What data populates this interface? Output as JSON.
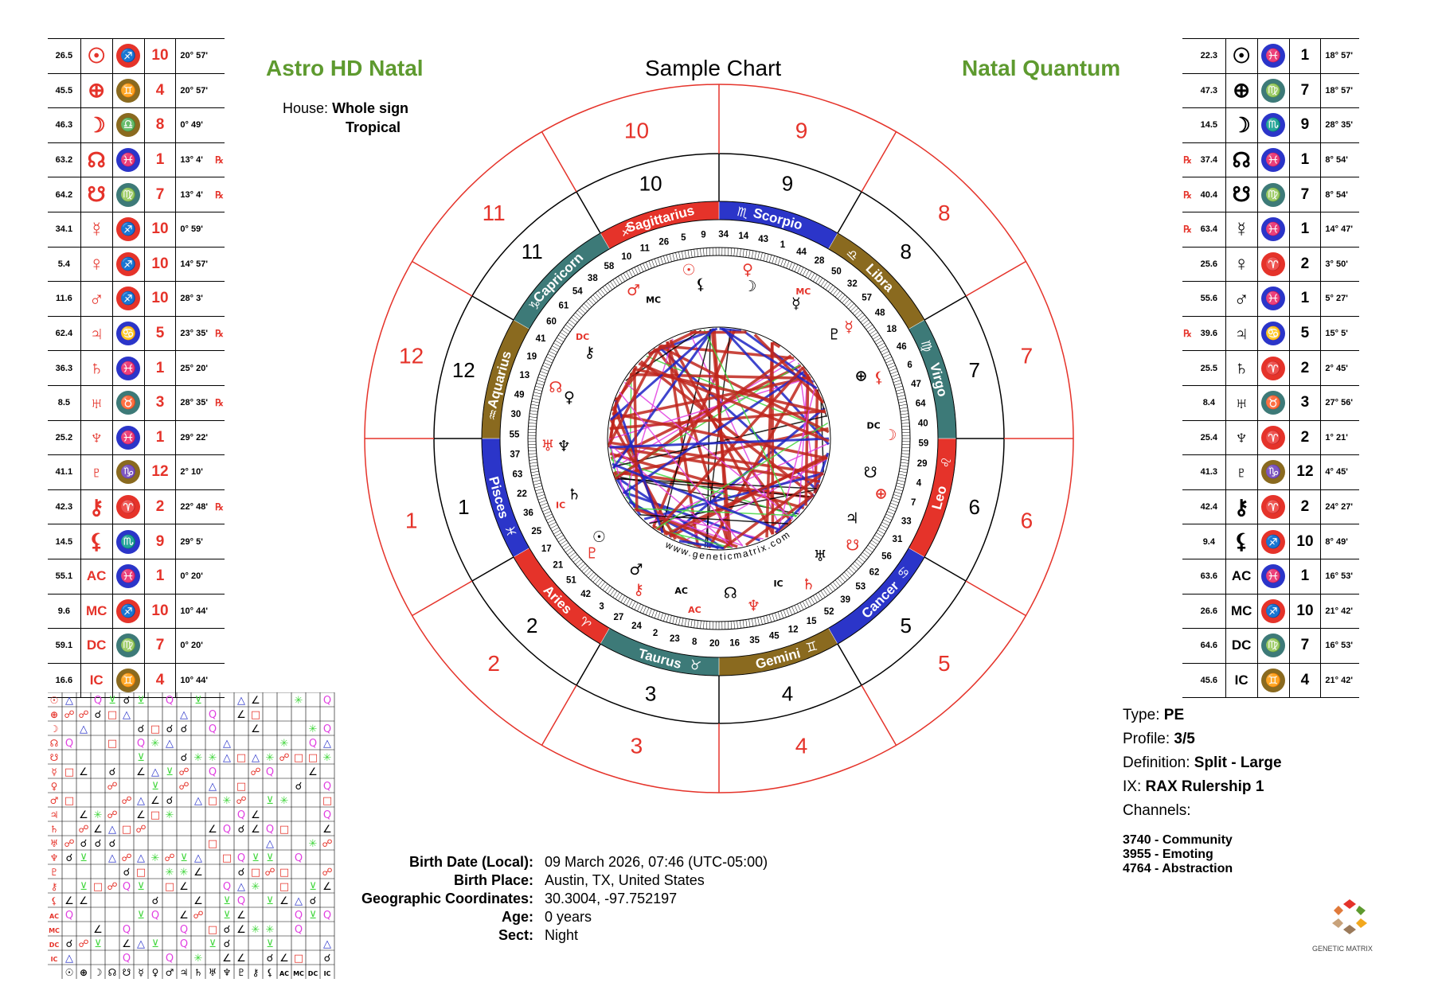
{
  "title": "Sample Chart",
  "left_heading": "Astro HD Natal",
  "right_heading": "Natal Quantum",
  "house_label": "House:",
  "house_system": "Whole sign",
  "zodiac": "Tropical",
  "website": "www.geneticmatrix.com",
  "logo_text": "GENETIC MATRIX",
  "colors": {
    "red": "#e5332a",
    "blue": "#2b35c9",
    "teal": "#3d7a78",
    "brown": "#8a6a1f",
    "green": "#5e9a2f"
  },
  "left_table": [
    {
      "deg": "26.5",
      "glyph": "☉",
      "sign": "sagittarius",
      "house": "10",
      "pos": "20° 57'",
      "rx": ""
    },
    {
      "deg": "45.5",
      "glyph": "⊕",
      "sign": "gemini",
      "house": "4",
      "pos": "20° 57'",
      "rx": ""
    },
    {
      "deg": "46.3",
      "glyph": "☽",
      "sign": "libra",
      "house": "8",
      "pos": "0° 49'",
      "rx": ""
    },
    {
      "deg": "63.2",
      "glyph": "☊",
      "sign": "pisces",
      "house": "1",
      "pos": "13° 4'",
      "rx": "℞"
    },
    {
      "deg": "64.2",
      "glyph": "☋",
      "sign": "virgo",
      "house": "7",
      "pos": "13° 4'",
      "rx": "℞"
    },
    {
      "deg": "34.1",
      "glyph": "☿",
      "sign": "sagittarius",
      "house": "10",
      "pos": "0° 59'",
      "rx": ""
    },
    {
      "deg": "5.4",
      "glyph": "♀",
      "sign": "sagittarius",
      "house": "10",
      "pos": "14° 57'",
      "rx": ""
    },
    {
      "deg": "11.6",
      "glyph": "♂",
      "sign": "sagittarius",
      "house": "10",
      "pos": "28° 3'",
      "rx": ""
    },
    {
      "deg": "62.4",
      "glyph": "♃",
      "sign": "cancer",
      "house": "5",
      "pos": "23° 35'",
      "rx": "℞"
    },
    {
      "deg": "36.3",
      "glyph": "♄",
      "sign": "pisces",
      "house": "1",
      "pos": "25° 20'",
      "rx": ""
    },
    {
      "deg": "8.5",
      "glyph": "♅",
      "sign": "taurus",
      "house": "3",
      "pos": "28° 35'",
      "rx": "℞"
    },
    {
      "deg": "25.2",
      "glyph": "♆",
      "sign": "pisces",
      "house": "1",
      "pos": "29° 22'",
      "rx": ""
    },
    {
      "deg": "41.1",
      "glyph": "♇",
      "sign": "capricorn",
      "house": "12",
      "pos": "2° 10'",
      "rx": ""
    },
    {
      "deg": "42.3",
      "glyph": "⚷",
      "sign": "aries",
      "house": "2",
      "pos": "22° 48'",
      "rx": "℞"
    },
    {
      "deg": "14.5",
      "glyph": "⚸",
      "sign": "scorpio",
      "house": "9",
      "pos": "29° 5'",
      "rx": ""
    },
    {
      "deg": "55.1",
      "glyph": "AC",
      "sign": "pisces",
      "house": "1",
      "pos": "0° 20'",
      "rx": ""
    },
    {
      "deg": "9.6",
      "glyph": "MC",
      "sign": "sagittarius",
      "house": "10",
      "pos": "10° 44'",
      "rx": ""
    },
    {
      "deg": "59.1",
      "glyph": "DC",
      "sign": "virgo",
      "house": "7",
      "pos": "0° 20'",
      "rx": ""
    },
    {
      "deg": "16.6",
      "glyph": "IC",
      "sign": "gemini",
      "house": "4",
      "pos": "10° 44'",
      "rx": ""
    }
  ],
  "right_table": [
    {
      "deg": "22.3",
      "glyph": "☉",
      "sign": "pisces",
      "house": "1",
      "pos": "18° 57'",
      "rx": ""
    },
    {
      "deg": "47.3",
      "glyph": "⊕",
      "sign": "virgo",
      "house": "7",
      "pos": "18° 57'",
      "rx": ""
    },
    {
      "deg": "14.5",
      "glyph": "☽",
      "sign": "scorpio",
      "house": "9",
      "pos": "28° 35'",
      "rx": ""
    },
    {
      "deg": "37.4",
      "glyph": "☊",
      "sign": "pisces",
      "house": "1",
      "pos": "8° 54'",
      "rx": "℞"
    },
    {
      "deg": "40.4",
      "glyph": "☋",
      "sign": "virgo",
      "house": "7",
      "pos": "8° 54'",
      "rx": "℞"
    },
    {
      "deg": "63.4",
      "glyph": "☿",
      "sign": "pisces",
      "house": "1",
      "pos": "14° 47'",
      "rx": "℞"
    },
    {
      "deg": "25.6",
      "glyph": "♀",
      "sign": "aries",
      "house": "2",
      "pos": "3° 50'",
      "rx": ""
    },
    {
      "deg": "55.6",
      "glyph": "♂",
      "sign": "pisces",
      "house": "1",
      "pos": "5° 27'",
      "rx": ""
    },
    {
      "deg": "39.6",
      "glyph": "♃",
      "sign": "cancer",
      "house": "5",
      "pos": "15° 5'",
      "rx": "℞"
    },
    {
      "deg": "25.5",
      "glyph": "♄",
      "sign": "aries",
      "house": "2",
      "pos": "2° 45'",
      "rx": ""
    },
    {
      "deg": "8.4",
      "glyph": "♅",
      "sign": "taurus",
      "house": "3",
      "pos": "27° 56'",
      "rx": ""
    },
    {
      "deg": "25.4",
      "glyph": "♆",
      "sign": "aries",
      "house": "2",
      "pos": "1° 21'",
      "rx": ""
    },
    {
      "deg": "41.3",
      "glyph": "♇",
      "sign": "capricorn",
      "house": "12",
      "pos": "4° 45'",
      "rx": ""
    },
    {
      "deg": "42.4",
      "glyph": "⚷",
      "sign": "aries",
      "house": "2",
      "pos": "24° 27'",
      "rx": ""
    },
    {
      "deg": "9.4",
      "glyph": "⚸",
      "sign": "sagittarius",
      "house": "10",
      "pos": "8° 49'",
      "rx": ""
    },
    {
      "deg": "63.6",
      "glyph": "AC",
      "sign": "pisces",
      "house": "1",
      "pos": "16° 53'",
      "rx": ""
    },
    {
      "deg": "26.6",
      "glyph": "MC",
      "sign": "sagittarius",
      "house": "10",
      "pos": "21° 42'",
      "rx": ""
    },
    {
      "deg": "64.6",
      "glyph": "DC",
      "sign": "virgo",
      "house": "7",
      "pos": "16° 53'",
      "rx": ""
    },
    {
      "deg": "45.6",
      "glyph": "IC",
      "sign": "gemini",
      "house": "4",
      "pos": "21° 42'",
      "rx": ""
    }
  ],
  "sign_badges": {
    "sagittarius": {
      "glyph": "♐",
      "color": "#e5332a"
    },
    "gemini": {
      "glyph": "♊",
      "color": "#8a6a1f"
    },
    "libra": {
      "glyph": "♎",
      "color": "#8a6a1f"
    },
    "pisces": {
      "glyph": "♓",
      "color": "#2b35c9"
    },
    "virgo": {
      "glyph": "♍",
      "color": "#3d7a78"
    },
    "cancer": {
      "glyph": "♋",
      "color": "#2b35c9"
    },
    "taurus": {
      "glyph": "♉",
      "color": "#3d7a78"
    },
    "capricorn": {
      "glyph": "♑",
      "color": "#8a6a1f"
    },
    "aries": {
      "glyph": "♈",
      "color": "#e5332a"
    },
    "scorpio": {
      "glyph": "♏",
      "color": "#2b35c9"
    }
  },
  "zodiac_ring": [
    {
      "name": "Sagittarius",
      "glyph": "♐",
      "color": "#e5332a"
    },
    {
      "name": "Scorpio",
      "glyph": "♏",
      "color": "#2b35c9"
    },
    {
      "name": "Libra",
      "glyph": "♎",
      "color": "#8a6a1f"
    },
    {
      "name": "Virgo",
      "glyph": "♍",
      "color": "#3d7a78"
    },
    {
      "name": "Leo",
      "glyph": "♌",
      "color": "#e5332a"
    },
    {
      "name": "Cancer",
      "glyph": "♋",
      "color": "#2b35c9"
    },
    {
      "name": "Gemini",
      "glyph": "♊",
      "color": "#8a6a1f"
    },
    {
      "name": "Taurus",
      "glyph": "♉",
      "color": "#3d7a78"
    },
    {
      "name": "Aries",
      "glyph": "♈",
      "color": "#e5332a"
    },
    {
      "name": "Pisces",
      "glyph": "♓",
      "color": "#2b35c9"
    },
    {
      "name": "Aquarius",
      "glyph": "♒",
      "color": "#8a6a1f"
    },
    {
      "name": "Capricorn",
      "glyph": "♑",
      "color": "#3d7a78"
    }
  ],
  "houses_outer": [
    "10",
    "9",
    "8",
    "7",
    "6",
    "5",
    "4",
    "3",
    "2",
    "1",
    "12",
    "11"
  ],
  "houses_inner": [
    "10",
    "9",
    "8",
    "7",
    "6",
    "5",
    "4",
    "3",
    "2",
    "1",
    "12",
    "11"
  ],
  "gate_numbers": [
    "5",
    "9",
    "34",
    "14",
    "43",
    "1",
    "44",
    "28",
    "50",
    "32",
    "57",
    "48",
    "18",
    "46",
    "6",
    "47",
    "64",
    "40",
    "59",
    "29",
    "4",
    "7",
    "33",
    "31",
    "56",
    "62",
    "53",
    "39",
    "52",
    "15",
    "12",
    "45",
    "35",
    "16",
    "20",
    "8",
    "23",
    "2",
    "24",
    "27",
    "3",
    "42",
    "51",
    "21",
    "17",
    "25",
    "36",
    "22",
    "63",
    "37",
    "55",
    "30",
    "49",
    "13",
    "19",
    "41",
    "60",
    "61",
    "54",
    "38",
    "58",
    "10",
    "11",
    "26"
  ],
  "ring_planets_red": [
    "♂",
    "☉",
    "♀",
    "MC",
    "☿",
    "⚸",
    "☽",
    "⊕",
    "☋",
    "♄",
    "♆",
    "AC",
    "⚷",
    "♇",
    "IC",
    "♅",
    "☊",
    "DC"
  ],
  "ring_planets_black": [
    "MC",
    "⚸",
    "☽",
    "☿",
    "♇",
    "⊕",
    "DC",
    "☋",
    "♃",
    "♅",
    "IC",
    "☊",
    "AC",
    "♂",
    "☉",
    "♄",
    "♆",
    "♀",
    "⚷"
  ],
  "info": {
    "type_label": "Type:",
    "type_value": "PE",
    "profile_label": "Profile:",
    "profile_value": "3/5",
    "definition_label": "Definition:",
    "definition_value": "Split - Large",
    "ix_label": "IX:",
    "ix_value": "RAX Rulership 1",
    "channels_label": "Channels:",
    "channels": [
      "3740 - Community",
      "3955 - Emoting",
      "4764 - Abstraction"
    ]
  },
  "birth": {
    "date_label": "Birth Date (Local):",
    "date_value": "09 March 2026, 07:46 (UTC-05:00)",
    "place_label": "Birth Place:",
    "place_value": "Austin, TX, United States",
    "coords_label": "Geographic Coordinates:",
    "coords_value": "30.3004, -97.752197",
    "age_label": "Age:",
    "age_value": "0 years",
    "sect_label": "Sect:",
    "sect_value": "Night"
  },
  "aspect_labels": [
    "☉",
    "⊕",
    "☽",
    "☊",
    "☋",
    "☿",
    "♀",
    "♂",
    "♃",
    "♄",
    "♅",
    "♆",
    "♇",
    "⚷",
    "⚸",
    "AC",
    "MC",
    "DC",
    "IC"
  ]
}
